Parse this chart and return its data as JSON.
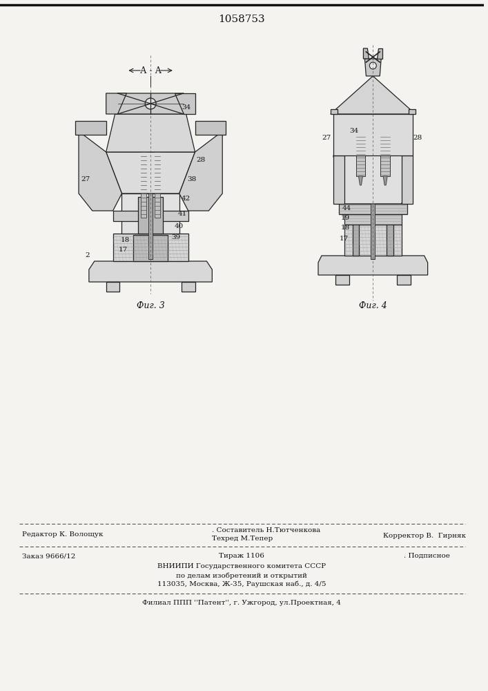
{
  "patent_number": "1058753",
  "bg_color": "#f5f3f0",
  "text_color": "#111111",
  "footer": {
    "line1_left": "Редактор К. Волощук",
    "line1_center_top": ". Составитель Н.Тютченкова",
    "line1_center_bot": "Техред М.Тепер",
    "line1_right": "Корректор В.  Гирняк",
    "line2_left": "Заказ 9666/12",
    "line2_center": "Тираж 1106",
    "line2_right": ". Подписное",
    "line3": "ВНИИПИ Государственного комитета СССР",
    "line4": "по делам изобретений и открытий",
    "line5": "113035, Москва, Ж-35, Раушская наб., д. 4/5",
    "line6": "Филиал ППП ''Патент'', г. Ужгород, ул.Проектная, 4"
  }
}
